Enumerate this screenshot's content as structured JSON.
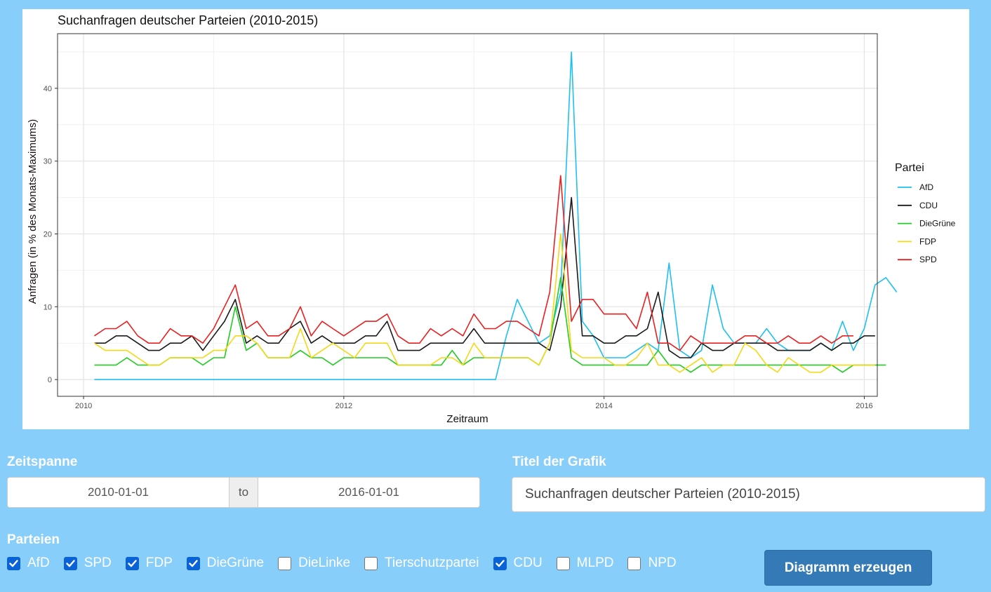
{
  "chart_data": {
    "type": "line",
    "title": "Suchanfragen deutscher Parteien (2010-2015)",
    "xlabel": "Zeitraum",
    "ylabel": "Anfragen (in % des Monats-Maximums)",
    "x_ticks": [
      "2010",
      "2012",
      "2014",
      "2016"
    ],
    "x_tick_values": [
      2010,
      2012,
      2014,
      2016
    ],
    "y_ticks": [
      "0",
      "10",
      "20",
      "30",
      "40"
    ],
    "xlim": [
      2009.8,
      2016.1
    ],
    "ylim": [
      -2.3,
      47.5
    ],
    "grid": true,
    "legend_title": "Partei",
    "legend_position": "right",
    "x_start": 2010.083,
    "x_step": 0.08333,
    "series": [
      {
        "name": "AfD",
        "color": "#1ec0f0",
        "values": [
          0,
          0,
          0,
          0,
          0,
          0,
          0,
          0,
          0,
          0,
          0,
          0,
          0,
          0,
          0,
          0,
          0,
          0,
          0,
          0,
          0,
          0,
          0,
          0,
          0,
          0,
          0,
          0,
          0,
          0,
          0,
          0,
          0,
          0,
          0,
          0,
          0,
          0,
          6,
          11,
          8,
          5,
          6,
          12,
          45,
          8,
          6,
          3,
          3,
          3,
          4,
          5,
          4,
          16,
          4,
          3,
          4,
          13,
          7,
          5,
          5,
          5,
          7,
          5,
          4,
          4,
          4,
          5,
          4,
          8,
          4,
          7,
          13,
          14,
          12
        ]
      },
      {
        "name": "CDU",
        "color": "#1a1a1a",
        "values": [
          5,
          5,
          6,
          6,
          5,
          4,
          4,
          5,
          5,
          6,
          4,
          6,
          8,
          11,
          5,
          6,
          5,
          5,
          7,
          8,
          5,
          6,
          5,
          5,
          5,
          6,
          6,
          8,
          4,
          4,
          4,
          5,
          5,
          5,
          5,
          7,
          5,
          5,
          5,
          5,
          5,
          5,
          4,
          10,
          25,
          6,
          6,
          5,
          5,
          6,
          6,
          7,
          12,
          4,
          3,
          3,
          5,
          4,
          4,
          5,
          5,
          5,
          5,
          4,
          4,
          4,
          4,
          5,
          4,
          5,
          5,
          6,
          6
        ]
      },
      {
        "name": "DieGrüne",
        "color": "#22cc22",
        "values": [
          2,
          2,
          2,
          3,
          2,
          2,
          2,
          3,
          3,
          3,
          2,
          3,
          3,
          10,
          4,
          5,
          3,
          3,
          3,
          4,
          3,
          3,
          2,
          3,
          3,
          3,
          3,
          3,
          2,
          2,
          2,
          2,
          2,
          4,
          2,
          3,
          3,
          3,
          3,
          3,
          3,
          2,
          5,
          14,
          3,
          2,
          2,
          2,
          2,
          2,
          2,
          2,
          4,
          2,
          2,
          1,
          2,
          2,
          2,
          2,
          2,
          2,
          2,
          2,
          2,
          2,
          2,
          2,
          2,
          1,
          2,
          2,
          2,
          2
        ]
      },
      {
        "name": "FDP",
        "color": "#f5d816",
        "values": [
          5,
          4,
          4,
          4,
          3,
          2,
          2,
          3,
          3,
          3,
          3,
          4,
          4,
          6,
          6,
          5,
          3,
          3,
          3,
          7,
          3,
          4,
          5,
          4,
          3,
          5,
          5,
          5,
          2,
          2,
          2,
          2,
          3,
          3,
          2,
          5,
          3,
          3,
          3,
          3,
          3,
          2,
          5,
          20,
          4,
          3,
          3,
          3,
          2,
          2,
          3,
          5,
          2,
          2,
          1,
          2,
          3,
          1,
          2,
          2,
          5,
          4,
          2,
          1,
          3,
          2,
          1,
          1,
          2,
          2,
          2,
          2,
          2
        ]
      },
      {
        "name": "SPD",
        "color": "#e82020",
        "values": [
          6,
          7,
          7,
          8,
          6,
          5,
          5,
          7,
          6,
          6,
          5,
          7,
          10,
          13,
          7,
          8,
          6,
          6,
          7,
          10,
          6,
          8,
          7,
          6,
          7,
          8,
          8,
          9,
          6,
          5,
          5,
          7,
          6,
          7,
          6,
          9,
          7,
          7,
          8,
          8,
          7,
          6,
          12,
          28,
          8,
          11,
          11,
          9,
          9,
          9,
          7,
          12,
          5,
          5,
          4,
          6,
          5,
          5,
          5,
          5,
          6,
          6,
          5,
          5,
          6,
          5,
          5,
          6,
          5,
          6,
          6
        ]
      }
    ]
  },
  "controls": {
    "zeitspanne_label": "Zeitspanne",
    "start_date": "2010-01-01",
    "separator": "to",
    "end_date": "2016-01-01",
    "titel_label": "Titel der Grafik",
    "titel_value": "Suchanfragen deutscher Parteien (2010-2015)",
    "parteien_label": "Parteien",
    "parteien": [
      {
        "label": "AfD",
        "checked": true
      },
      {
        "label": "SPD",
        "checked": true
      },
      {
        "label": "FDP",
        "checked": true
      },
      {
        "label": "DieGrüne",
        "checked": true
      },
      {
        "label": "DieLinke",
        "checked": false
      },
      {
        "label": "Tierschutzpartei",
        "checked": false
      },
      {
        "label": "CDU",
        "checked": true
      },
      {
        "label": "MLPD",
        "checked": false
      },
      {
        "label": "NPD",
        "checked": false
      }
    ],
    "submit_label": "Diagramm erzeugen"
  }
}
